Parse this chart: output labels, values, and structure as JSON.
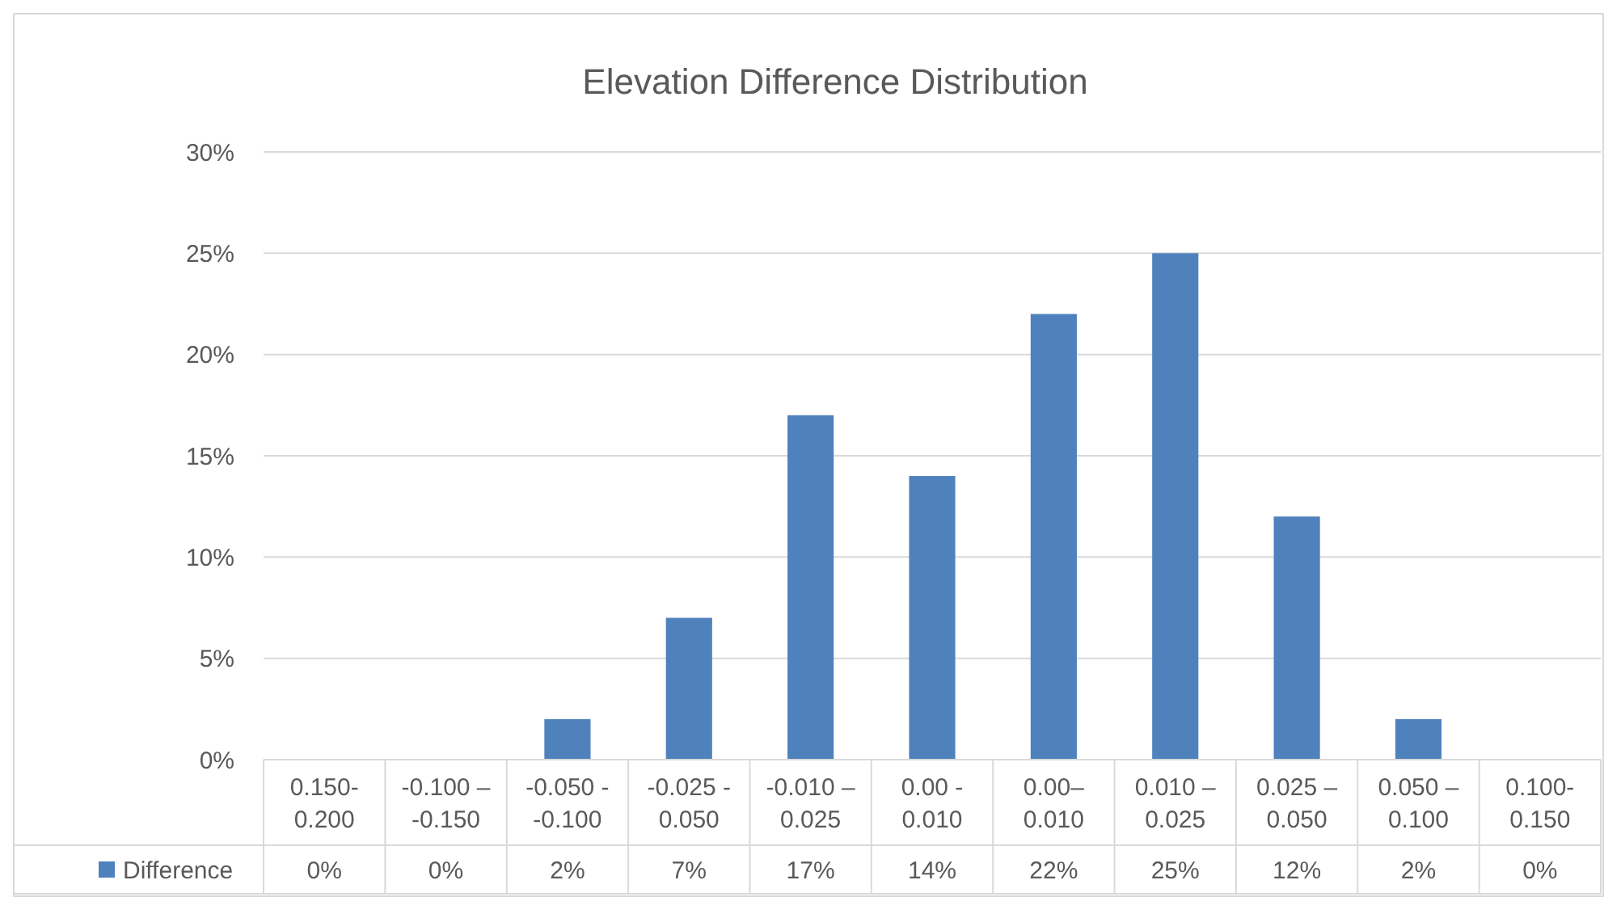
{
  "chart_data": {
    "type": "bar",
    "title": "Elevation Difference Distribution",
    "categories": [
      "0.150-0.200",
      "-0.100 – -0.150",
      "-0.050 - -0.100",
      "-0.025 - 0.050",
      "-0.010 – 0.025",
      "0.00 - 0.010",
      "0.00–0.010",
      "0.010 – 0.025",
      "0.025 – 0.050",
      "0.050 – 0.100",
      "0.100-0.150"
    ],
    "series": [
      {
        "name": "Difference",
        "color": "#4f81bd",
        "values": [
          0,
          0,
          2,
          7,
          17,
          14,
          22,
          25,
          12,
          2,
          0
        ],
        "value_labels": [
          "0%",
          "0%",
          "2%",
          "7%",
          "17%",
          "14%",
          "22%",
          "25%",
          "12%",
          "2%",
          "0%"
        ]
      }
    ],
    "ylim": [
      0,
      30
    ],
    "yticks": [
      {
        "value": 0,
        "label": "0%"
      },
      {
        "value": 5,
        "label": "5%"
      },
      {
        "value": 10,
        "label": "10%"
      },
      {
        "value": 15,
        "label": "15%"
      },
      {
        "value": 20,
        "label": "20%"
      },
      {
        "value": 25,
        "label": "25%"
      },
      {
        "value": 30,
        "label": "30%"
      }
    ],
    "grid": "y",
    "legend": "bottom"
  }
}
